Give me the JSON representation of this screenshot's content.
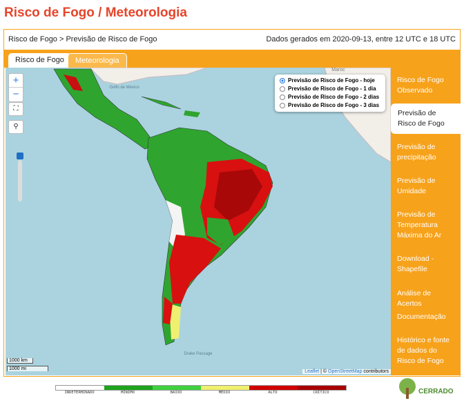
{
  "header": {
    "title": "Risco de Fogo / Meteorologia"
  },
  "breadcrumb": "Risco de Fogo > Previsão de Risco de Fogo",
  "generated": "Dados gerados em 2020-09-13, entre 12 UTC e 18 UTC",
  "tabs": [
    "Risco de Fogo",
    "Meteorologia"
  ],
  "zoom": [
    "+",
    "−"
  ],
  "layers": [
    "Previsão de Risco de Fogo - hoje",
    "Previsão de Risco de Fogo - 1 dia",
    "Previsão de Risco de Fogo - 2 dias",
    "Previsão de Risco de Fogo - 3 dias"
  ],
  "map_labels": [
    "Golfo de México",
    "Maroc",
    "Drake Passage"
  ],
  "scale": [
    "1000 km",
    "1000 mi"
  ],
  "attribution": {
    "leaflet": "Leaflet",
    "rest": "| ©",
    "osm": "OpenStreetMap",
    "tail": "contributors"
  },
  "sidebar": [
    "Risco de Fogo Observado",
    "Previsão de Risco de Fogo",
    "Previsão de precipitação",
    "Previsão de Umidade",
    "Previsão de Temperatura Máxima do Ar",
    "Download - Shapefile",
    "Análise de Acertos",
    "Documentação",
    "Histórico e fonte de dados do Risco de Fogo"
  ],
  "legend": [
    "INDETERMINADO",
    "MÍNIMO",
    "BAIXO",
    "MÉDIO",
    "ALTO",
    "CRÍTICO"
  ],
  "logo": "CERRADO"
}
